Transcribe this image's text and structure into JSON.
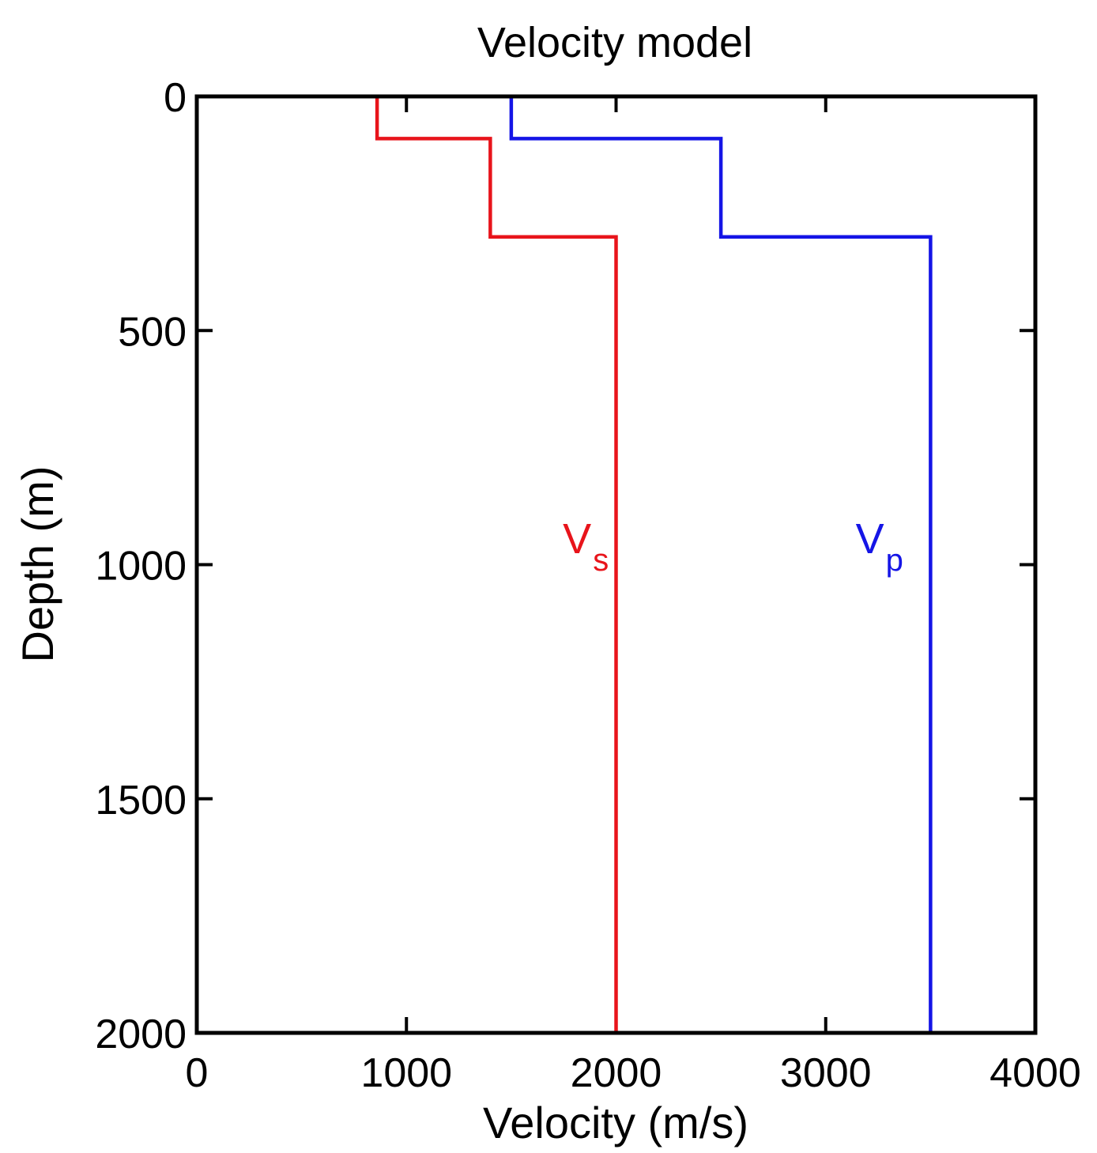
{
  "chart_data": {
    "type": "line",
    "title": "Velocity model",
    "xlabel": "Velocity (m/s)",
    "ylabel": "Depth (m)",
    "xlim": [
      0,
      4000
    ],
    "ylim": [
      0,
      2000
    ],
    "y_inverted": true,
    "x_ticks": [
      0,
      1000,
      2000,
      3000,
      4000
    ],
    "y_ticks": [
      0,
      500,
      1000,
      1500,
      2000
    ],
    "x_tick_labels": [
      "0",
      "1000",
      "2000",
      "3000",
      "4000"
    ],
    "y_tick_labels": [
      "0",
      "500",
      "1000",
      "1500",
      "2000"
    ],
    "grid": false,
    "series": [
      {
        "name": "Vs",
        "label_main": "V",
        "label_sub": "s",
        "color": "#e8141b",
        "points": [
          [
            860,
            0
          ],
          [
            860,
            90
          ],
          [
            1400,
            90
          ],
          [
            1400,
            300
          ],
          [
            2000,
            300
          ],
          [
            2000,
            2000
          ]
        ]
      },
      {
        "name": "Vp",
        "label_main": "V",
        "label_sub": "p",
        "color": "#1515e6",
        "points": [
          [
            1500,
            0
          ],
          [
            1500,
            90
          ],
          [
            2500,
            90
          ],
          [
            2500,
            300
          ],
          [
            3500,
            300
          ],
          [
            3500,
            2000
          ]
        ]
      }
    ]
  }
}
